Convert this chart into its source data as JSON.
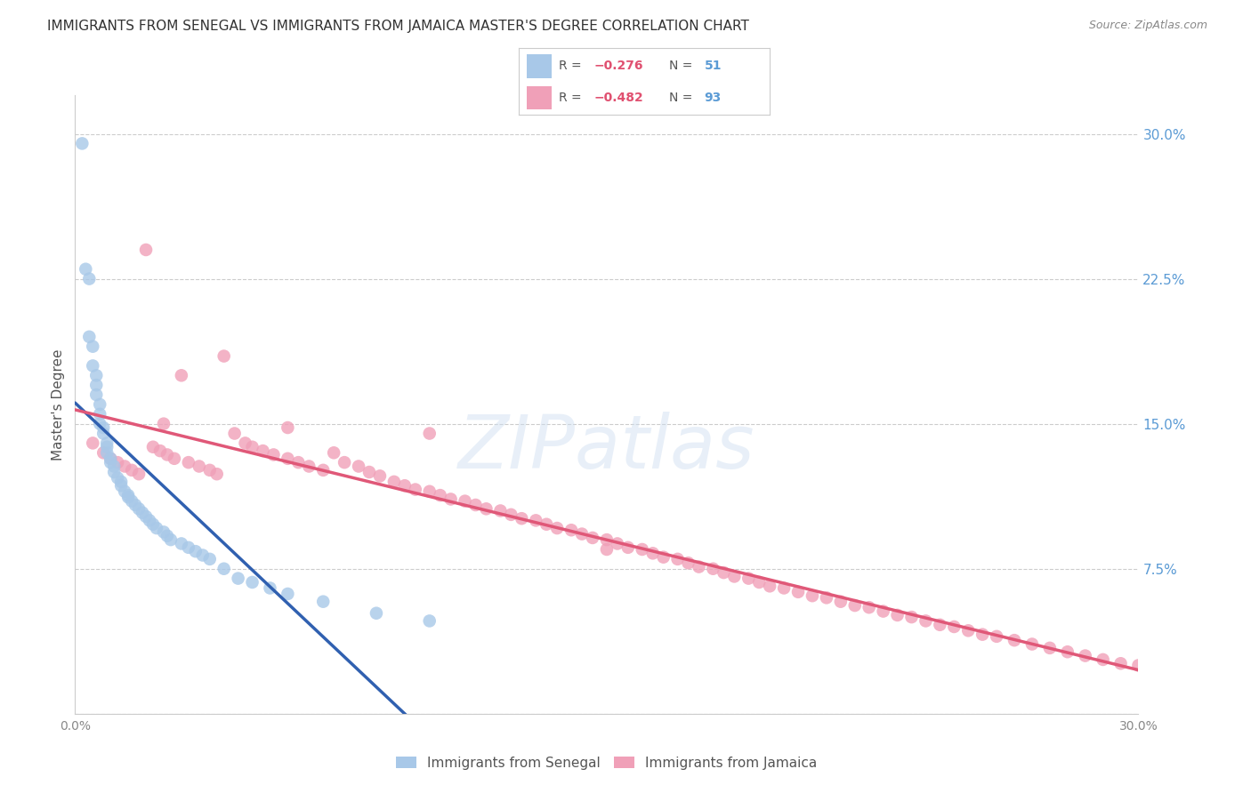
{
  "title": "IMMIGRANTS FROM SENEGAL VS IMMIGRANTS FROM JAMAICA MASTER'S DEGREE CORRELATION CHART",
  "source": "Source: ZipAtlas.com",
  "ylabel": "Master's Degree",
  "watermark": "ZIPatlas",
  "xlim": [
    0.0,
    0.3
  ],
  "ylim": [
    0.0,
    0.32
  ],
  "senegal_color": "#a8c8e8",
  "jamaica_color": "#f0a0b8",
  "senegal_line_color": "#3060b0",
  "jamaica_line_color": "#e05878",
  "dash_color": "#bbbbbb",
  "senegal_R": -0.276,
  "senegal_N": 51,
  "jamaica_R": -0.482,
  "jamaica_N": 93,
  "legend_label_senegal": "Immigrants from Senegal",
  "legend_label_jamaica": "Immigrants from Jamaica",
  "background_color": "#ffffff",
  "grid_color": "#cccccc",
  "title_color": "#333333",
  "right_axis_color": "#5b9bd5",
  "title_fontsize": 11,
  "source_fontsize": 9,
  "senegal_x": [
    0.002,
    0.003,
    0.004,
    0.004,
    0.005,
    0.005,
    0.006,
    0.006,
    0.006,
    0.007,
    0.007,
    0.007,
    0.008,
    0.008,
    0.009,
    0.009,
    0.009,
    0.01,
    0.01,
    0.011,
    0.011,
    0.012,
    0.013,
    0.013,
    0.014,
    0.015,
    0.015,
    0.016,
    0.017,
    0.018,
    0.019,
    0.02,
    0.021,
    0.022,
    0.023,
    0.025,
    0.026,
    0.027,
    0.03,
    0.032,
    0.034,
    0.036,
    0.038,
    0.042,
    0.046,
    0.05,
    0.055,
    0.06,
    0.07,
    0.085,
    0.1
  ],
  "senegal_y": [
    0.295,
    0.23,
    0.225,
    0.195,
    0.19,
    0.18,
    0.175,
    0.17,
    0.165,
    0.16,
    0.155,
    0.15,
    0.148,
    0.145,
    0.14,
    0.138,
    0.135,
    0.132,
    0.13,
    0.128,
    0.125,
    0.122,
    0.12,
    0.118,
    0.115,
    0.113,
    0.112,
    0.11,
    0.108,
    0.106,
    0.104,
    0.102,
    0.1,
    0.098,
    0.096,
    0.094,
    0.092,
    0.09,
    0.088,
    0.086,
    0.084,
    0.082,
    0.08,
    0.075,
    0.07,
    0.068,
    0.065,
    0.062,
    0.058,
    0.052,
    0.048
  ],
  "jamaica_x": [
    0.005,
    0.008,
    0.01,
    0.012,
    0.014,
    0.016,
    0.018,
    0.02,
    0.022,
    0.024,
    0.026,
    0.028,
    0.03,
    0.032,
    0.035,
    0.038,
    0.04,
    0.042,
    0.045,
    0.048,
    0.05,
    0.053,
    0.056,
    0.06,
    0.063,
    0.066,
    0.07,
    0.073,
    0.076,
    0.08,
    0.083,
    0.086,
    0.09,
    0.093,
    0.096,
    0.1,
    0.103,
    0.106,
    0.11,
    0.113,
    0.116,
    0.12,
    0.123,
    0.126,
    0.13,
    0.133,
    0.136,
    0.14,
    0.143,
    0.146,
    0.15,
    0.153,
    0.156,
    0.16,
    0.163,
    0.166,
    0.17,
    0.173,
    0.176,
    0.18,
    0.183,
    0.186,
    0.19,
    0.193,
    0.196,
    0.2,
    0.204,
    0.208,
    0.212,
    0.216,
    0.22,
    0.224,
    0.228,
    0.232,
    0.236,
    0.24,
    0.244,
    0.248,
    0.252,
    0.256,
    0.26,
    0.265,
    0.27,
    0.275,
    0.28,
    0.285,
    0.29,
    0.295,
    0.3,
    0.025,
    0.06,
    0.1,
    0.15
  ],
  "jamaica_y": [
    0.14,
    0.135,
    0.132,
    0.13,
    0.128,
    0.126,
    0.124,
    0.24,
    0.138,
    0.136,
    0.134,
    0.132,
    0.175,
    0.13,
    0.128,
    0.126,
    0.124,
    0.185,
    0.145,
    0.14,
    0.138,
    0.136,
    0.134,
    0.132,
    0.13,
    0.128,
    0.126,
    0.135,
    0.13,
    0.128,
    0.125,
    0.123,
    0.12,
    0.118,
    0.116,
    0.115,
    0.113,
    0.111,
    0.11,
    0.108,
    0.106,
    0.105,
    0.103,
    0.101,
    0.1,
    0.098,
    0.096,
    0.095,
    0.093,
    0.091,
    0.09,
    0.088,
    0.086,
    0.085,
    0.083,
    0.081,
    0.08,
    0.078,
    0.076,
    0.075,
    0.073,
    0.071,
    0.07,
    0.068,
    0.066,
    0.065,
    0.063,
    0.061,
    0.06,
    0.058,
    0.056,
    0.055,
    0.053,
    0.051,
    0.05,
    0.048,
    0.046,
    0.045,
    0.043,
    0.041,
    0.04,
    0.038,
    0.036,
    0.034,
    0.032,
    0.03,
    0.028,
    0.026,
    0.025,
    0.15,
    0.148,
    0.145,
    0.085
  ]
}
